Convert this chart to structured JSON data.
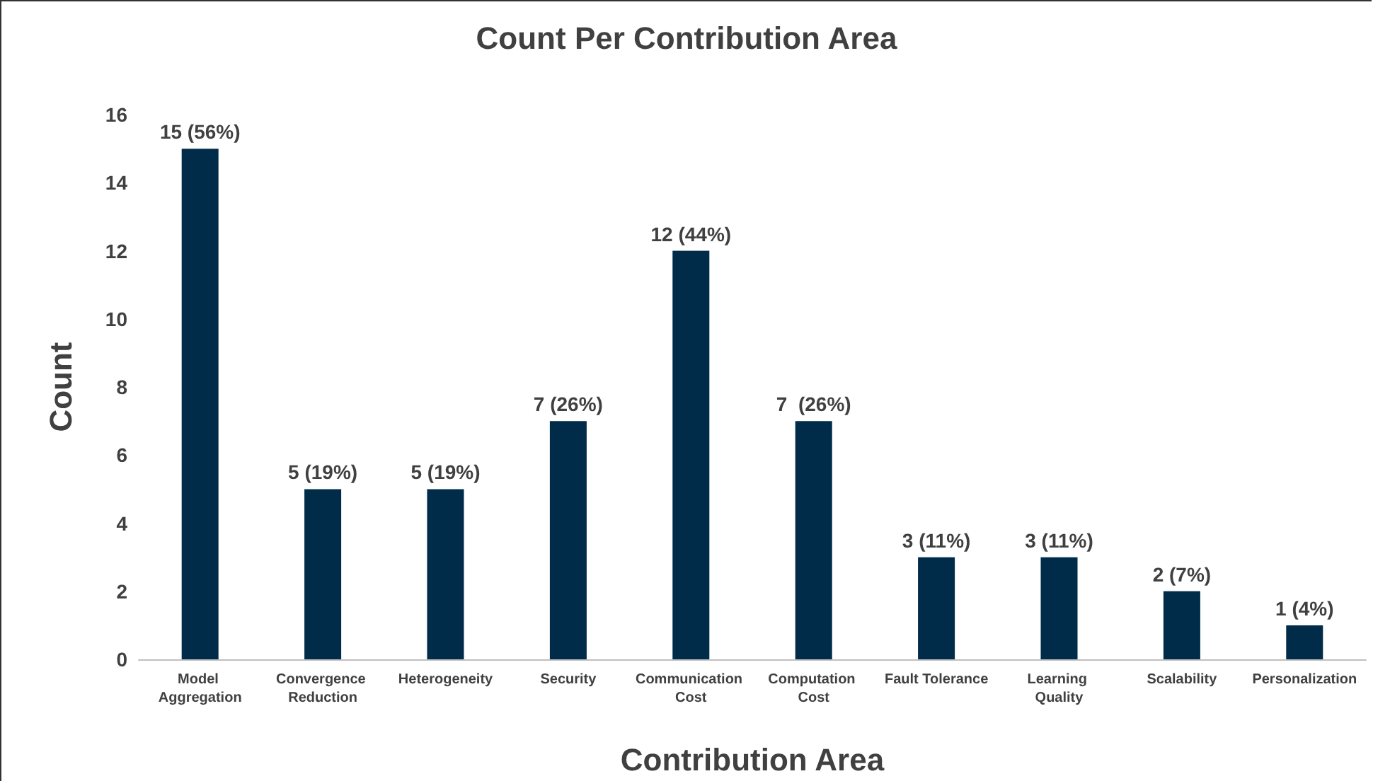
{
  "chart_data": {
    "type": "bar",
    "title": "Count Per Contribution Area",
    "xlabel": "Contribution Area",
    "ylabel": "Count",
    "categories": [
      "Model Aggregation",
      "Convergence Reduction",
      "Heterogeneity",
      "Security",
      "Communication Cost",
      "Computation Cost",
      "Fault Tolerance",
      "Learning Quality",
      "Scalability",
      "Personalization"
    ],
    "values": [
      15,
      5,
      5,
      7,
      12,
      7,
      3,
      3,
      2,
      1
    ],
    "value_labels": [
      "15 (56%)",
      "5 (19%)",
      "5 (19%)",
      "7 (26%)",
      "12 (44%)",
      "7  (26%)",
      "3 (11%)",
      "3 (11%)",
      "2 (7%)",
      "1 (4%)"
    ],
    "color": "#002b49",
    "ylim": [
      0,
      16
    ],
    "yticks": [
      0,
      2,
      4,
      6,
      8,
      10,
      12,
      14,
      16
    ]
  }
}
